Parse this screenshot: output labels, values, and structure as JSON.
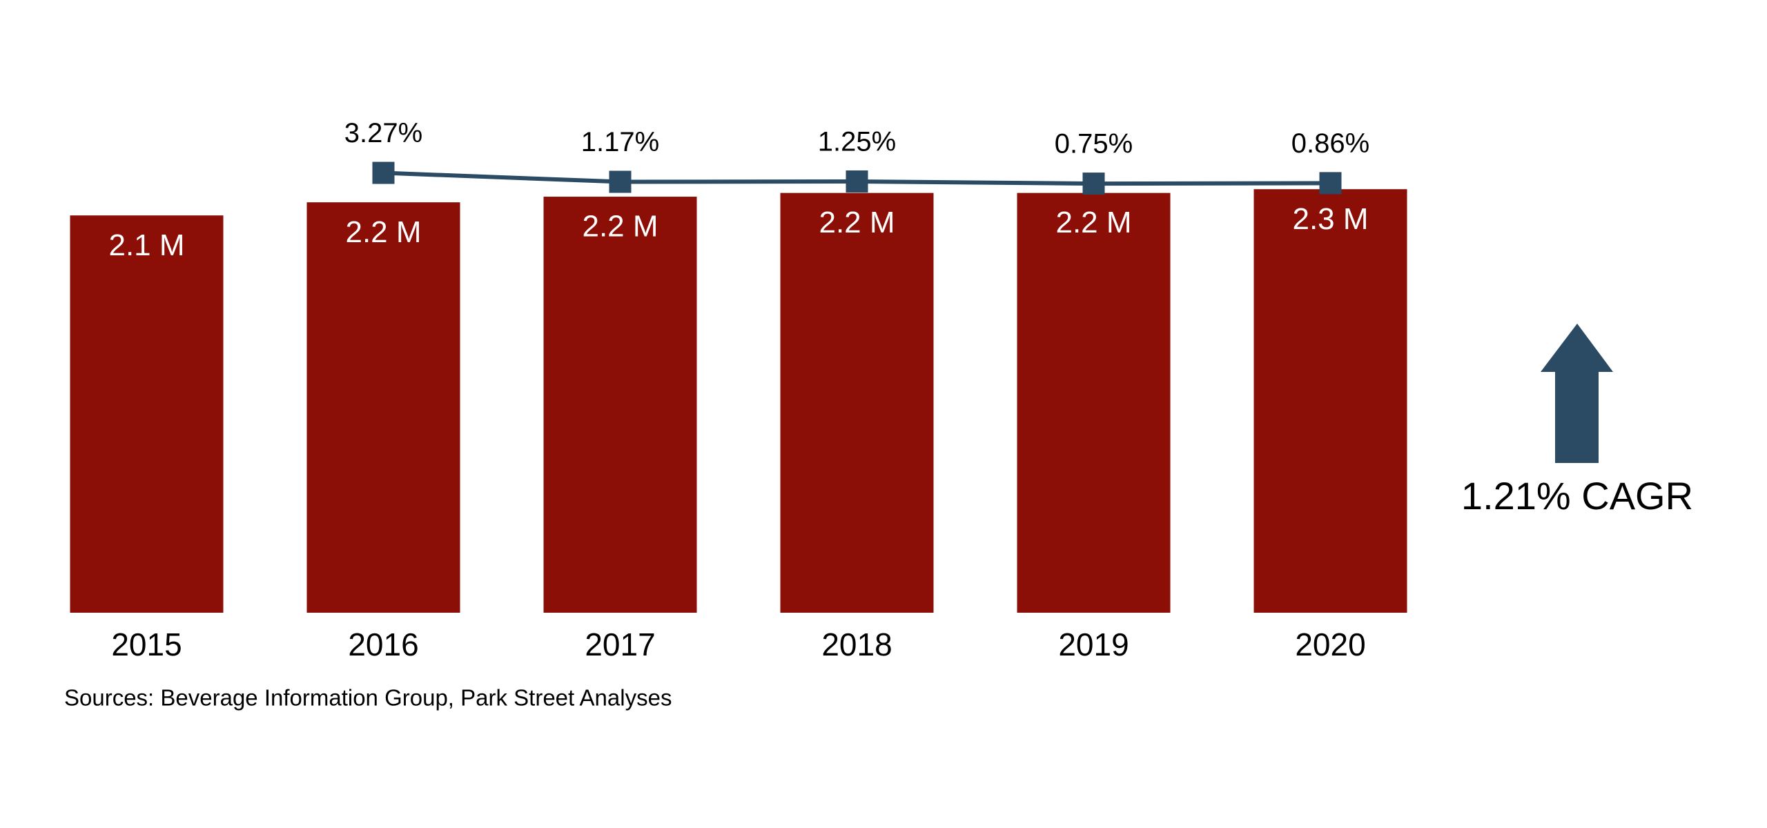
{
  "chart_data": {
    "type": "bar",
    "categories": [
      "2015",
      "2016",
      "2017",
      "2018",
      "2019",
      "2020"
    ],
    "series": [
      {
        "type": "bar",
        "color": "#8b0f06",
        "values": [
          2.12,
          2.19,
          2.22,
          2.24,
          2.24,
          2.26
        ],
        "value_labels": [
          "2.1 M",
          "2.2 M",
          "2.2 M",
          "2.2 M",
          "2.2 M",
          "2.3 M"
        ]
      },
      {
        "type": "line",
        "axis": "y2",
        "color": "#2b4a63",
        "values": [
          null,
          3.27,
          1.17,
          1.25,
          0.75,
          0.86
        ],
        "value_labels": [
          null,
          "3.27%",
          "1.17%",
          "1.25%",
          "0.75%",
          "0.86%"
        ]
      }
    ],
    "ylim": [
      0,
      2.5
    ],
    "y2lim": [
      -100,
      10
    ],
    "annotation": "1.21% CAGR",
    "source": "Sources: Beverage Information Group, Park Street Analyses"
  }
}
